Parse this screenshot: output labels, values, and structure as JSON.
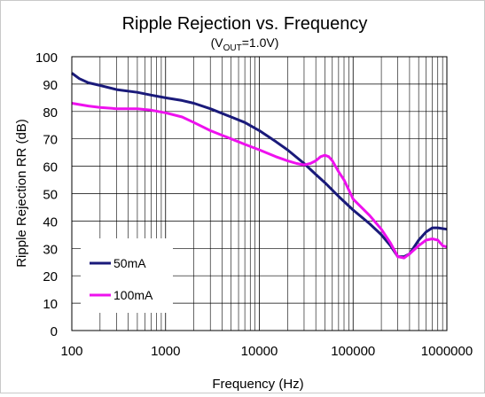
{
  "chart_data": {
    "type": "line",
    "title": "Ripple Rejection vs. Frequency",
    "subtitle": {
      "prefix": "(V",
      "subscript": "OUT",
      "suffix": "=1.0V)"
    },
    "xlabel": "Frequency (Hz)",
    "ylabel": "Ripple Rejection RR (dB)",
    "x_scale": "log",
    "xlim": [
      100,
      1000000
    ],
    "ylim": [
      0,
      100
    ],
    "x_ticks": [
      100,
      1000,
      10000,
      100000,
      1000000
    ],
    "x_tick_labels": [
      "100",
      "1000",
      "10000",
      "100000",
      "1000000"
    ],
    "y_ticks": [
      0,
      10,
      20,
      30,
      40,
      50,
      60,
      70,
      80,
      90,
      100
    ],
    "y_tick_labels": [
      "0",
      "10",
      "20",
      "30",
      "40",
      "50",
      "60",
      "70",
      "80",
      "90",
      "100"
    ],
    "grid": true,
    "legend_position": "bottom-left",
    "series": [
      {
        "name": "50mA",
        "color": "#1a1a7a",
        "points": [
          [
            100,
            94
          ],
          [
            120,
            92
          ],
          [
            150,
            90.5
          ],
          [
            200,
            89.5
          ],
          [
            300,
            88
          ],
          [
            500,
            87
          ],
          [
            700,
            86
          ],
          [
            1000,
            85
          ],
          [
            1500,
            84
          ],
          [
            2000,
            83
          ],
          [
            3000,
            81
          ],
          [
            5000,
            78
          ],
          [
            7000,
            76
          ],
          [
            10000,
            73
          ],
          [
            15000,
            69
          ],
          [
            20000,
            66
          ],
          [
            30000,
            61
          ],
          [
            40000,
            57
          ],
          [
            50000,
            54
          ],
          [
            70000,
            49
          ],
          [
            100000,
            44
          ],
          [
            150000,
            39
          ],
          [
            200000,
            35
          ],
          [
            250000,
            31
          ],
          [
            300000,
            27
          ],
          [
            350000,
            27
          ],
          [
            400000,
            28
          ],
          [
            500000,
            33
          ],
          [
            600000,
            36
          ],
          [
            700000,
            37.5
          ],
          [
            800000,
            37.5
          ],
          [
            1000000,
            37
          ]
        ]
      },
      {
        "name": "100mA",
        "color": "#ee11ee",
        "points": [
          [
            100,
            83
          ],
          [
            150,
            82
          ],
          [
            200,
            81.5
          ],
          [
            300,
            81
          ],
          [
            500,
            81
          ],
          [
            700,
            80.5
          ],
          [
            1000,
            79.5
          ],
          [
            1500,
            78
          ],
          [
            2000,
            76
          ],
          [
            3000,
            73
          ],
          [
            5000,
            70
          ],
          [
            7000,
            68
          ],
          [
            10000,
            66
          ],
          [
            15000,
            63.5
          ],
          [
            20000,
            62
          ],
          [
            25000,
            61
          ],
          [
            30000,
            60.5
          ],
          [
            35000,
            61
          ],
          [
            40000,
            62
          ],
          [
            45000,
            63.5
          ],
          [
            50000,
            64
          ],
          [
            55000,
            63.5
          ],
          [
            60000,
            62
          ],
          [
            70000,
            58
          ],
          [
            80000,
            55
          ],
          [
            100000,
            48
          ],
          [
            150000,
            42
          ],
          [
            200000,
            37
          ],
          [
            250000,
            32
          ],
          [
            300000,
            27
          ],
          [
            350000,
            26.5
          ],
          [
            400000,
            28
          ],
          [
            500000,
            31
          ],
          [
            600000,
            33
          ],
          [
            700000,
            33.5
          ],
          [
            800000,
            33
          ],
          [
            900000,
            31
          ],
          [
            1000000,
            30.5
          ]
        ]
      }
    ]
  }
}
